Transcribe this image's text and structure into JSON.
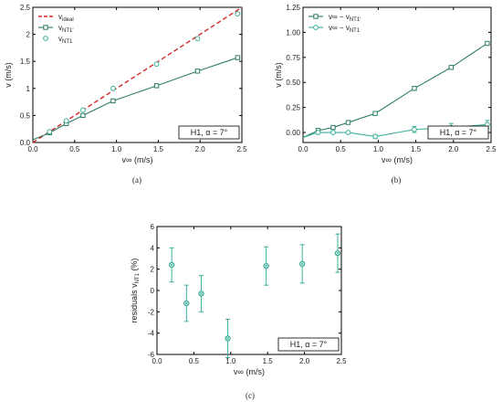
{
  "colors": {
    "series_dark": "#2e7d66",
    "series_light": "#3cb09a",
    "ideal": "#d62728"
  },
  "chart_data": [
    {
      "id": "a",
      "type": "line",
      "caption": "(a)",
      "xlabel": "v∞ (m/s)",
      "ylabel": "v (m/s)",
      "xlim": [
        0,
        2.5
      ],
      "ylim": [
        0,
        2.5
      ],
      "xticks": [
        "0.0",
        "0.5",
        "1.0",
        "1.5",
        "2.0",
        "2.5"
      ],
      "yticks": [
        "0.0",
        "0.5",
        "1",
        "1.5",
        "2",
        "2.5"
      ],
      "annotation": "H1, α = 7°",
      "legend_position": "top-left",
      "series": [
        {
          "name": "v_ideal",
          "style": "dashed",
          "x": [
            0,
            2.5
          ],
          "y": [
            0,
            2.5
          ]
        },
        {
          "name": "v_NT1'",
          "style": "line-square",
          "x": [
            0.0,
            0.2,
            0.4,
            0.6,
            0.96,
            1.48,
            1.97,
            2.45
          ],
          "y": [
            0.05,
            0.18,
            0.35,
            0.5,
            0.77,
            1.05,
            1.32,
            1.57
          ]
        },
        {
          "name": "v_NT1",
          "style": "marker-circle",
          "x": [
            0.2,
            0.4,
            0.6,
            0.96,
            1.48,
            1.97,
            2.45
          ],
          "y": [
            0.2,
            0.4,
            0.6,
            1.0,
            1.45,
            1.92,
            2.38
          ]
        }
      ]
    },
    {
      "id": "b",
      "type": "line",
      "caption": "(b)",
      "xlabel": "v∞ (m/s)",
      "ylabel": "v (m/s)",
      "xlim": [
        0,
        2.5
      ],
      "ylim": [
        -0.1,
        1.25
      ],
      "xticks": [
        "0.0",
        "0.5",
        "1.0",
        "1.5",
        "2.0",
        "2.5"
      ],
      "yticks": [
        "0.00",
        "0.25",
        "0.50",
        "0.75",
        "1.00",
        "1.25"
      ],
      "annotation": "H1, α = 7°",
      "legend_position": "top-left",
      "series": [
        {
          "name": "v∞ − v_NT1'",
          "style": "line-square",
          "x": [
            0.0,
            0.2,
            0.4,
            0.6,
            0.96,
            1.48,
            1.97,
            2.45
          ],
          "y": [
            -0.05,
            0.02,
            0.05,
            0.1,
            0.19,
            0.44,
            0.65,
            0.89
          ]
        },
        {
          "name": "v∞ − v_NT1",
          "style": "line-circle-err",
          "x": [
            0.0,
            0.2,
            0.4,
            0.6,
            0.96,
            1.48,
            1.97,
            2.45
          ],
          "y": [
            -0.05,
            0.0,
            0.0,
            0.0,
            -0.04,
            0.03,
            0.05,
            0.08
          ],
          "err": [
            0,
            0.01,
            0.01,
            0.01,
            0.02,
            0.03,
            0.04,
            0.04
          ]
        }
      ]
    },
    {
      "id": "c",
      "type": "scatter",
      "caption": "(c)",
      "xlabel": "v∞ (m/s)",
      "ylabel": "residuals v_NT1 (%)",
      "xlim": [
        0,
        2.5
      ],
      "ylim": [
        -6,
        6
      ],
      "xticks": [
        "0.0",
        "0.5",
        "1.0",
        "1.5",
        "2.0",
        "2.5"
      ],
      "yticks": [
        "-6",
        "-4",
        "-2",
        "0",
        "2",
        "4",
        "6"
      ],
      "annotation": "H1, α = 7°",
      "series": [
        {
          "name": "residuals",
          "x": [
            0.2,
            0.4,
            0.6,
            0.96,
            1.48,
            1.97,
            2.45
          ],
          "y": [
            2.4,
            -1.2,
            -0.3,
            -4.5,
            2.3,
            2.5,
            3.5
          ],
          "err": [
            1.6,
            1.7,
            1.7,
            1.8,
            1.8,
            1.8,
            1.8
          ]
        }
      ]
    }
  ]
}
